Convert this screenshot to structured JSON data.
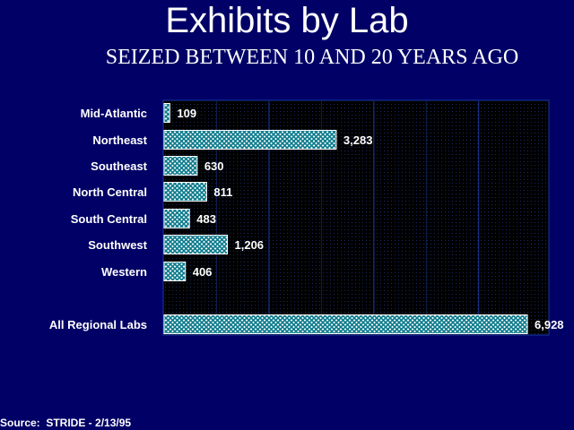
{
  "chart_data": {
    "type": "bar",
    "orientation": "horizontal",
    "title": "Exhibits by Lab",
    "subtitle": "SEIZED BETWEEN 10 AND 20 YEARS AGO",
    "xlabel": "",
    "ylabel": "",
    "categories": [
      "Mid-Atlantic",
      "Northeast",
      "Southeast",
      "North Central",
      "South Central",
      "Southwest",
      "Western",
      "All Regional Labs"
    ],
    "values": [
      109,
      3283,
      630,
      811,
      483,
      1206,
      406,
      6928
    ],
    "value_labels": [
      "109",
      "3,283",
      "630",
      "811",
      "483",
      "1,206",
      "406",
      "6,928"
    ],
    "xlim": [
      0,
      7000
    ],
    "grid": true,
    "legend": "none",
    "colors": {
      "background": "#000066",
      "plot_background": "#000000",
      "bar_fill": "#ffffff",
      "bar_hatch": "#0a7a8c",
      "gridline": "#1a3aaa",
      "text": "#ffffff"
    }
  },
  "source": "Source:  STRIDE - 2/13/95"
}
